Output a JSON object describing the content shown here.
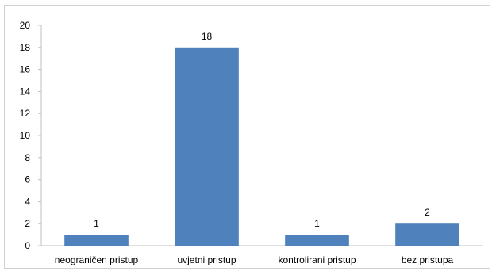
{
  "chart_data": {
    "type": "bar",
    "categories": [
      "neograničen pristup",
      "uvjetni pristup",
      "kontrolirani pristup",
      "bez pristupa"
    ],
    "values": [
      1,
      18,
      1,
      2
    ],
    "data_labels": [
      "1",
      "18",
      "1",
      "2"
    ],
    "title": "",
    "xlabel": "",
    "ylabel": "",
    "ylim": [
      0,
      20
    ],
    "yticks": [
      0,
      2,
      4,
      6,
      8,
      10,
      12,
      14,
      16,
      18,
      20
    ],
    "grid": false,
    "legend": "none",
    "colors": {
      "bar": "#4f81bd",
      "axis": "#bfbfbf"
    }
  }
}
